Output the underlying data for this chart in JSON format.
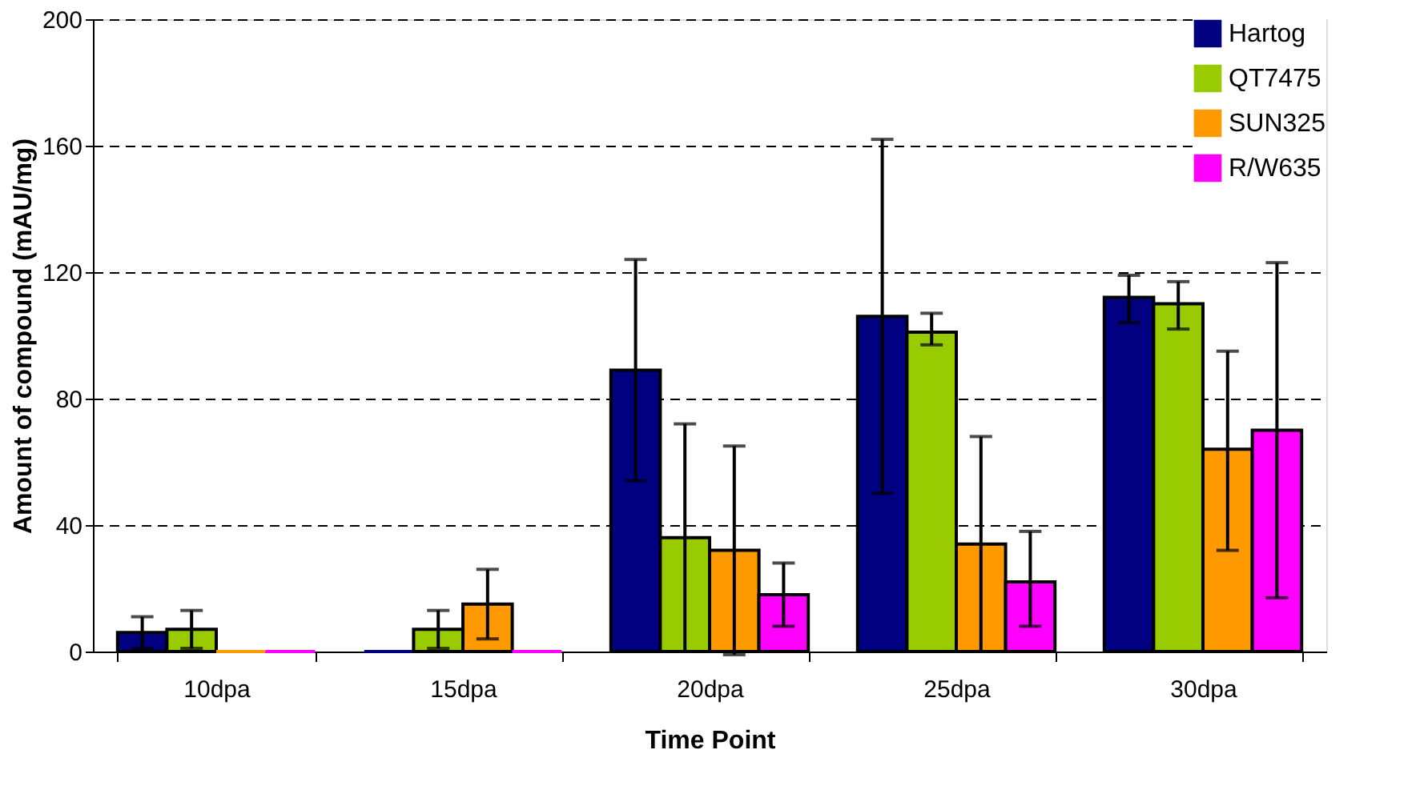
{
  "chart_data": {
    "type": "bar",
    "xlabel": "Time Point",
    "ylabel": "Amount of compound (mAU/mg)",
    "categories": [
      "10dpa",
      "15dpa",
      "20dpa",
      "25dpa",
      "30dpa"
    ],
    "series": [
      {
        "name": "Hartog",
        "color": "#000080",
        "values": [
          6,
          0,
          89,
          106,
          112
        ],
        "errors": [
          5,
          null,
          [
            54,
            124
          ],
          [
            50,
            162
          ],
          [
            104,
            119
          ]
        ]
      },
      {
        "name": "QT7475",
        "color": "#99cc00",
        "values": [
          7,
          7,
          36,
          101,
          110
        ],
        "errors": [
          6,
          6,
          36,
          [
            97,
            107
          ],
          [
            102,
            117
          ]
        ]
      },
      {
        "name": "SUN325",
        "color": "#ff9900",
        "values": [
          0,
          15,
          32,
          34,
          64
        ],
        "errors": [
          null,
          11,
          33,
          34,
          [
            32,
            95
          ]
        ]
      },
      {
        "name": "R/W635",
        "color": "#ff00ff",
        "values": [
          0,
          0,
          18,
          22,
          70
        ],
        "errors": [
          null,
          null,
          10,
          [
            8,
            38
          ],
          [
            17,
            123
          ]
        ]
      }
    ],
    "ylim": [
      0,
      200
    ],
    "yticks": [
      0,
      40,
      80,
      120,
      160,
      200
    ],
    "grid": "y",
    "legend": "top right"
  }
}
